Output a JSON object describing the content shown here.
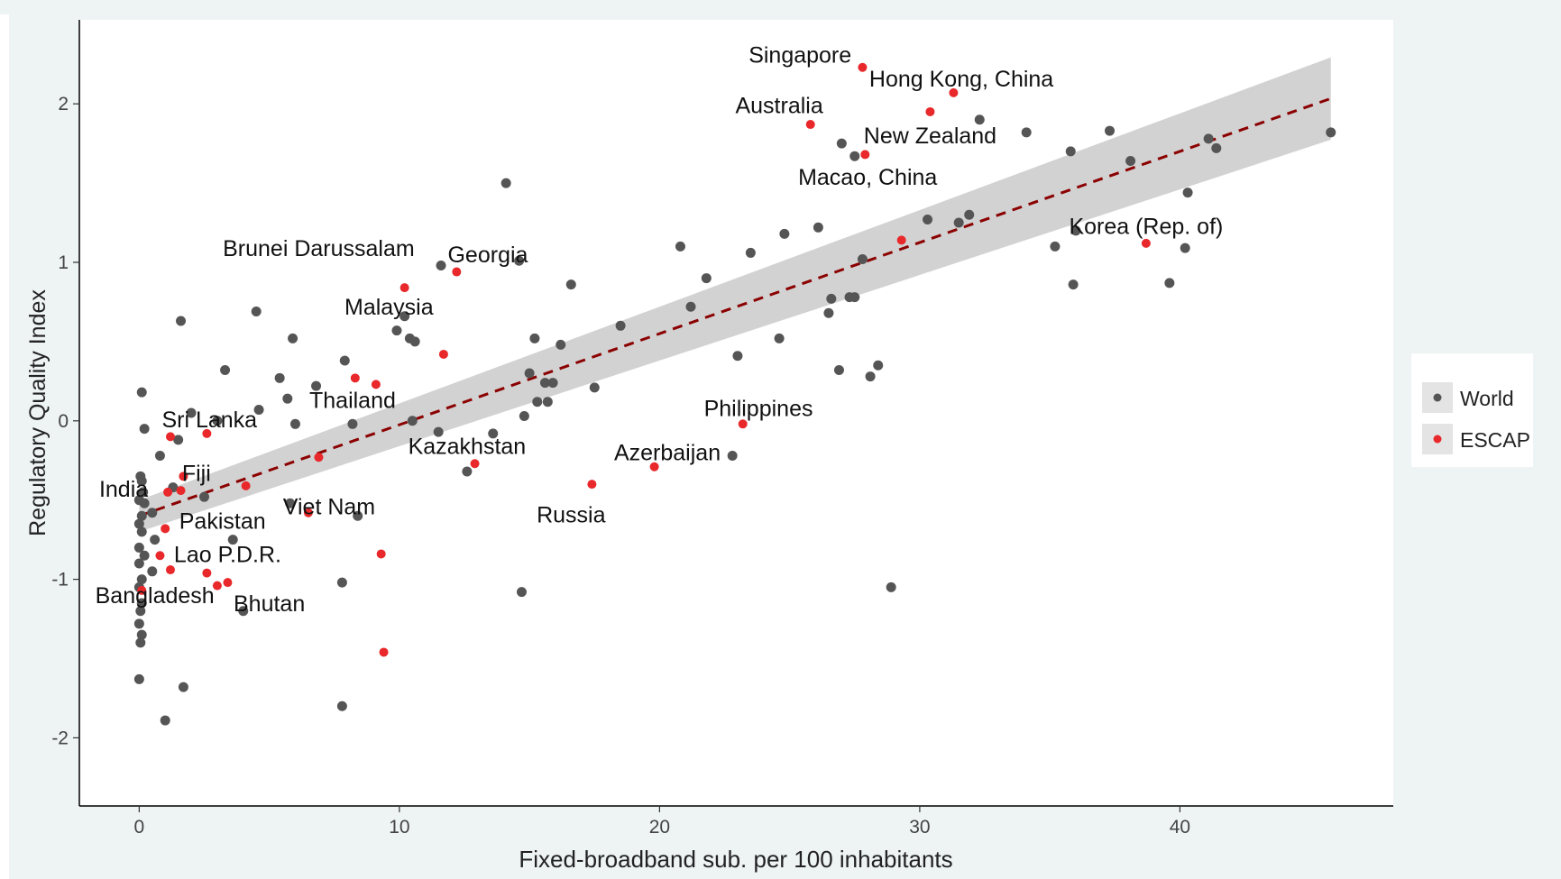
{
  "chart_data": {
    "type": "scatter",
    "title": "",
    "xlabel": "Fixed-broadband sub. per 100 inhabitants",
    "ylabel": "Regulatory Quality Index",
    "xlim": [
      -2.3,
      48.2
    ],
    "ylim": [
      -2.43,
      2.53
    ],
    "x_ticks": [
      0,
      10,
      20,
      30,
      40
    ],
    "y_ticks": [
      -2,
      -1,
      0,
      1,
      2
    ],
    "grid": false,
    "legend_position": "right",
    "trend": {
      "type": "linear",
      "x_range": [
        0,
        45.8
      ],
      "intercept": -0.6,
      "slope": 0.0575,
      "band_halfwidth_ends": [
        0.1,
        0.26
      ]
    },
    "series": [
      {
        "name": "World",
        "color": "#555555",
        "points": [
          [
            0.1,
            0.18
          ],
          [
            0.2,
            -0.05
          ],
          [
            0.05,
            -0.35
          ],
          [
            0.1,
            -0.38
          ],
          [
            0.15,
            -0.45
          ],
          [
            0.0,
            -0.5
          ],
          [
            0.2,
            -0.52
          ],
          [
            0.1,
            -0.6
          ],
          [
            0.0,
            -0.65
          ],
          [
            0.1,
            -0.7
          ],
          [
            0.0,
            -0.8
          ],
          [
            0.2,
            -0.85
          ],
          [
            0.0,
            -0.9
          ],
          [
            0.1,
            -1.0
          ],
          [
            0.0,
            -1.05
          ],
          [
            0.1,
            -1.15
          ],
          [
            0.05,
            -1.2
          ],
          [
            0.0,
            -1.28
          ],
          [
            0.1,
            -1.35
          ],
          [
            0.05,
            -1.4
          ],
          [
            0.0,
            -1.63
          ],
          [
            0.5,
            -0.58
          ],
          [
            0.6,
            -0.75
          ],
          [
            0.5,
            -0.95
          ],
          [
            0.8,
            -0.22
          ],
          [
            1.0,
            -1.89
          ],
          [
            1.3,
            -0.42
          ],
          [
            1.5,
            -0.12
          ],
          [
            1.6,
            0.63
          ],
          [
            1.7,
            -1.68
          ],
          [
            2.0,
            0.05
          ],
          [
            2.5,
            -0.48
          ],
          [
            3.0,
            0.0
          ],
          [
            3.3,
            0.32
          ],
          [
            3.6,
            -0.75
          ],
          [
            4.0,
            -1.2
          ],
          [
            4.6,
            0.07
          ],
          [
            4.5,
            0.69
          ],
          [
            5.4,
            0.27
          ],
          [
            5.7,
            0.14
          ],
          [
            5.8,
            -0.52
          ],
          [
            5.9,
            0.52
          ],
          [
            6.0,
            -0.02
          ],
          [
            6.8,
            0.22
          ],
          [
            7.8,
            -1.02
          ],
          [
            7.9,
            0.38
          ],
          [
            7.8,
            -1.8
          ],
          [
            8.2,
            -0.02
          ],
          [
            8.4,
            -0.6
          ],
          [
            9.9,
            0.57
          ],
          [
            10.2,
            0.66
          ],
          [
            10.4,
            0.52
          ],
          [
            10.6,
            0.5
          ],
          [
            10.5,
            0.0
          ],
          [
            11.5,
            -0.07
          ],
          [
            11.6,
            0.98
          ],
          [
            12.6,
            -0.32
          ],
          [
            13.6,
            -0.08
          ],
          [
            14.1,
            1.5
          ],
          [
            14.6,
            1.01
          ],
          [
            14.8,
            0.03
          ],
          [
            14.7,
            -1.08
          ],
          [
            15.0,
            0.3
          ],
          [
            15.2,
            0.52
          ],
          [
            15.3,
            0.12
          ],
          [
            15.6,
            0.24
          ],
          [
            15.7,
            0.12
          ],
          [
            15.9,
            0.24
          ],
          [
            16.2,
            0.48
          ],
          [
            16.6,
            0.86
          ],
          [
            17.5,
            0.21
          ],
          [
            18.5,
            0.6
          ],
          [
            20.8,
            1.1
          ],
          [
            21.2,
            0.72
          ],
          [
            21.8,
            0.9
          ],
          [
            22.8,
            -0.22
          ],
          [
            23.0,
            0.41
          ],
          [
            23.5,
            1.06
          ],
          [
            24.6,
            0.52
          ],
          [
            24.8,
            1.18
          ],
          [
            26.1,
            1.22
          ],
          [
            26.5,
            0.68
          ],
          [
            26.6,
            0.77
          ],
          [
            26.9,
            0.32
          ],
          [
            27.0,
            1.75
          ],
          [
            27.3,
            0.78
          ],
          [
            27.5,
            0.78
          ],
          [
            27.5,
            1.67
          ],
          [
            27.8,
            1.02
          ],
          [
            28.1,
            0.28
          ],
          [
            28.4,
            0.35
          ],
          [
            28.9,
            -1.05
          ],
          [
            30.3,
            1.27
          ],
          [
            31.5,
            1.25
          ],
          [
            31.9,
            1.3
          ],
          [
            32.3,
            1.9
          ],
          [
            34.1,
            1.82
          ],
          [
            35.2,
            1.1
          ],
          [
            35.8,
            1.7
          ],
          [
            35.9,
            0.86
          ],
          [
            36.0,
            1.2
          ],
          [
            37.3,
            1.83
          ],
          [
            38.1,
            1.64
          ],
          [
            39.6,
            0.87
          ],
          [
            40.2,
            1.09
          ],
          [
            40.3,
            1.44
          ],
          [
            41.1,
            1.78
          ],
          [
            41.4,
            1.72
          ],
          [
            45.8,
            1.82
          ]
        ]
      },
      {
        "name": "ESCAP",
        "color": "#e8282a",
        "points": [
          [
            1.2,
            -0.1
          ],
          [
            2.6,
            -0.08
          ],
          [
            1.7,
            -0.35
          ],
          [
            1.1,
            -0.45
          ],
          [
            1.6,
            -0.44
          ],
          [
            1.0,
            -0.68
          ],
          [
            0.8,
            -0.85
          ],
          [
            1.2,
            -0.94
          ],
          [
            0.1,
            -1.07
          ],
          [
            2.6,
            -0.96
          ],
          [
            3.0,
            -1.04
          ],
          [
            3.4,
            -1.02
          ],
          [
            4.1,
            -0.41
          ],
          [
            6.5,
            -0.58
          ],
          [
            6.9,
            -0.23
          ],
          [
            8.3,
            0.27
          ],
          [
            9.1,
            0.23
          ],
          [
            9.3,
            -0.84
          ],
          [
            9.4,
            -1.46
          ],
          [
            10.2,
            0.84
          ],
          [
            11.7,
            0.42
          ],
          [
            12.2,
            0.94
          ],
          [
            12.9,
            -0.27
          ],
          [
            17.4,
            -0.4
          ],
          [
            19.8,
            -0.29
          ],
          [
            23.2,
            -0.02
          ],
          [
            25.8,
            1.87
          ],
          [
            27.9,
            1.68
          ],
          [
            27.8,
            2.23
          ],
          [
            29.3,
            1.14
          ],
          [
            30.4,
            1.95
          ],
          [
            31.3,
            2.07
          ],
          [
            38.7,
            1.12
          ]
        ]
      }
    ],
    "annotations": [
      {
        "text": "Singapore",
        "x": 25.4,
        "y": 2.26
      },
      {
        "text": "Hong Kong, China",
        "x": 31.6,
        "y": 2.11
      },
      {
        "text": "Australia",
        "x": 24.6,
        "y": 1.94
      },
      {
        "text": "New Zealand",
        "x": 30.4,
        "y": 1.75
      },
      {
        "text": "Macao, China",
        "x": 28.0,
        "y": 1.49
      },
      {
        "text": "Korea (Rep. of)",
        "x": 38.7,
        "y": 1.18
      },
      {
        "text": "Brunei Darussalam",
        "x": 6.9,
        "y": 1.04
      },
      {
        "text": "Georgia",
        "x": 13.4,
        "y": 1.0
      },
      {
        "text": "Malaysia",
        "x": 9.6,
        "y": 0.67
      },
      {
        "text": "Thailand",
        "x": 8.2,
        "y": 0.08
      },
      {
        "text": "Sri Lanka",
        "x": 2.7,
        "y": -0.04
      },
      {
        "text": "Philippines",
        "x": 23.8,
        "y": 0.03
      },
      {
        "text": "Kazakhstan",
        "x": 12.6,
        "y": -0.21
      },
      {
        "text": "Azerbaijan",
        "x": 20.3,
        "y": -0.25
      },
      {
        "text": "Fiji",
        "x": 2.2,
        "y": -0.38
      },
      {
        "text": "India",
        "x": -0.6,
        "y": -0.48
      },
      {
        "text": "Viet Nam",
        "x": 7.3,
        "y": -0.59
      },
      {
        "text": "Pakistan",
        "x": 3.2,
        "y": -0.68
      },
      {
        "text": "Russia",
        "x": 16.6,
        "y": -0.64
      },
      {
        "text": "Lao P.D.R.",
        "x": 3.4,
        "y": -0.89
      },
      {
        "text": "Bangladesh",
        "x": 0.6,
        "y": -1.15
      },
      {
        "text": "Bhutan",
        "x": 5.0,
        "y": -1.2
      }
    ]
  }
}
